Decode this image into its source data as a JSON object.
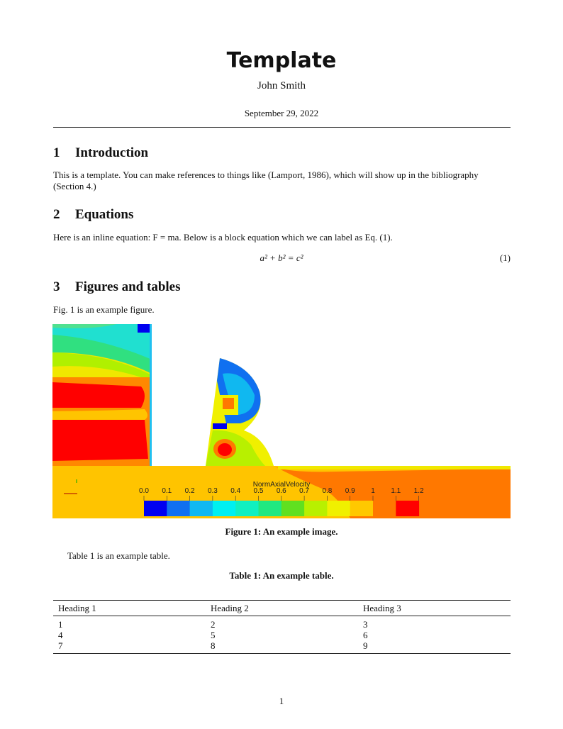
{
  "title": "Template",
  "author": "John Smith",
  "date": "September 29, 2022",
  "sections": [
    {
      "num": "1",
      "title": "Introduction"
    },
    {
      "num": "2",
      "title": "Equations"
    },
    {
      "num": "3",
      "title": "Figures and tables"
    }
  ],
  "intro_text": "This is a template. You can make references to things like (Lamport, 1986), which will show up in the bibliography (Section 4.)",
  "equations_text": "Here is an inline equation: F = ma. Below is a block equation which we can label as Eq. (1).",
  "equation": "a² + b² = c²",
  "equation_number": "(1)",
  "figures_text": "Fig. 1 is an example figure.",
  "figure": {
    "caption": "Figure 1: An example image.",
    "colorbar_title": "NormAxialVelocity",
    "colorbar_ticks": [
      "0.0",
      "0.1",
      "0.2",
      "0.3",
      "0.4",
      "0.5",
      "0.6",
      "0.7",
      "0.8",
      "0.9",
      "1",
      "1.1",
      "1.2"
    ],
    "colorbar_colors": [
      "#0000f0",
      "#1070f0",
      "#10b8f0",
      "#00f0f0",
      "#10f0c0",
      "#20e880",
      "#60e020",
      "#b8f000",
      "#f0f000",
      "#ffc800",
      "#ff7800",
      "#ff0000"
    ]
  },
  "table_text": "Table 1 is an example table.",
  "table": {
    "caption": "Table 1: An example table.",
    "headers": [
      "Heading 1",
      "Heading 2",
      "Heading 3"
    ],
    "rows": [
      [
        "1",
        "2",
        "3"
      ],
      [
        "4",
        "5",
        "6"
      ],
      [
        "7",
        "8",
        "9"
      ]
    ]
  },
  "page_number": "1"
}
